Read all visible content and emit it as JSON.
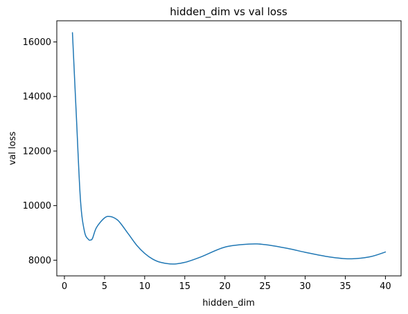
{
  "chart_data": {
    "type": "line",
    "title": "hidden_dim vs val loss",
    "xlabel": "hidden_dim",
    "ylabel": "val loss",
    "xlim": [
      -0.95,
      41.95
    ],
    "ylim": [
      7425,
      16775
    ],
    "xticks": [
      0,
      5,
      10,
      15,
      20,
      25,
      30,
      35,
      40
    ],
    "yticks": [
      8000,
      10000,
      12000,
      14000,
      16000
    ],
    "grid": false,
    "series": [
      {
        "color": "#1f77b4",
        "x": [
          1,
          1.5,
          2,
          2.5,
          3,
          3.25,
          3.5,
          4,
          5,
          5.7,
          6.5,
          7,
          8,
          9,
          10,
          11,
          12,
          13.5,
          15,
          17,
          20,
          23,
          25,
          28,
          30,
          33,
          35.5,
          38,
          40
        ],
        "y": [
          16340,
          13200,
          10200,
          9050,
          8760,
          8740,
          8800,
          9200,
          9550,
          9600,
          9500,
          9350,
          8950,
          8550,
          8250,
          8040,
          7920,
          7860,
          7920,
          8120,
          8480,
          8590,
          8570,
          8420,
          8290,
          8120,
          8050,
          8120,
          8300
        ]
      }
    ]
  }
}
